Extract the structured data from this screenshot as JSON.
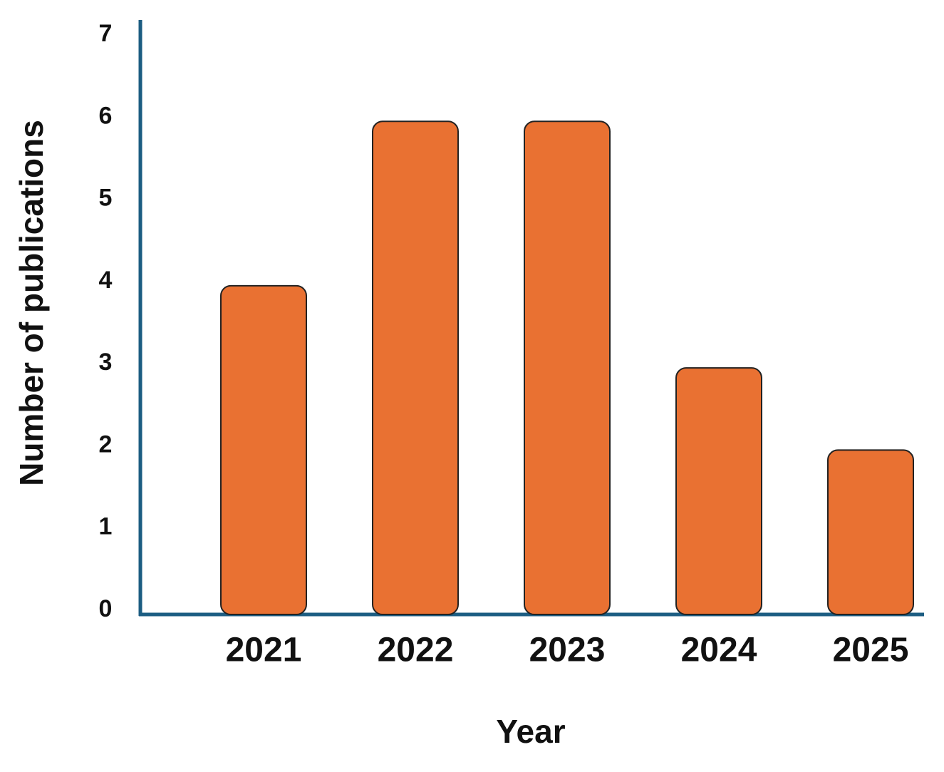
{
  "chart_data": {
    "type": "bar",
    "x_label": "Year",
    "y_label": "Number of publications",
    "categories": [
      "2021",
      "2022",
      "2023",
      "2024",
      "2025"
    ],
    "values": [
      4,
      6,
      6,
      3,
      2
    ],
    "color": "#e97132",
    "ylim": [
      0,
      7
    ],
    "yticks": [
      0,
      1,
      2,
      3,
      4,
      5,
      6,
      7
    ],
    "grid": false
  }
}
